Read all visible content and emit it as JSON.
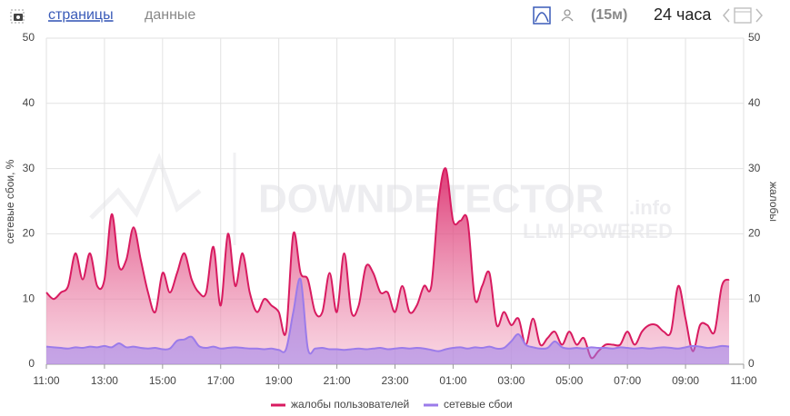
{
  "header": {
    "tabs": [
      "страницы",
      "данные"
    ],
    "interval": "(15м)",
    "range": "24 часа"
  },
  "watermark": {
    "brand": "DOWNDETECTOR",
    "suffix": ".info",
    "tagline": "LLM POWERED"
  },
  "chart_data": {
    "type": "area",
    "x": [
      0,
      0.25,
      0.5,
      0.75,
      1,
      1.25,
      1.5,
      1.75,
      2,
      2.25,
      2.5,
      2.75,
      3,
      3.25,
      3.5,
      3.75,
      4,
      4.25,
      4.5,
      4.75,
      5,
      5.25,
      5.5,
      5.75,
      6,
      6.25,
      6.5,
      6.75,
      7,
      7.25,
      7.5,
      7.75,
      8,
      8.25,
      8.5,
      8.75,
      9,
      9.25,
      9.5,
      9.75,
      10,
      10.25,
      10.5,
      10.75,
      11,
      11.25,
      11.5,
      11.75,
      12,
      12.25,
      12.5,
      12.75,
      13,
      13.25,
      13.5,
      13.75,
      14,
      14.25,
      14.5,
      14.75,
      15,
      15.25,
      15.5,
      15.75,
      16,
      16.25,
      16.5,
      16.75,
      17,
      17.25,
      17.5,
      17.75,
      18,
      18.25,
      18.5,
      18.75,
      19,
      19.25,
      19.5,
      19.75,
      20,
      20.25,
      20.5,
      20.75,
      21,
      21.25,
      21.5,
      21.75,
      22,
      22.25,
      22.5,
      22.75,
      23,
      23.25,
      23.5
    ],
    "xlim": [
      0,
      24
    ],
    "xticks": [
      {
        "value": 0,
        "label": "11:00"
      },
      {
        "value": 2,
        "label": "13:00"
      },
      {
        "value": 4,
        "label": "15:00"
      },
      {
        "value": 6,
        "label": "17:00"
      },
      {
        "value": 8,
        "label": "19:00"
      },
      {
        "value": 10,
        "label": "21:00"
      },
      {
        "value": 12,
        "label": "23:00"
      },
      {
        "value": 14,
        "label": "01:00"
      },
      {
        "value": 16,
        "label": "03:00"
      },
      {
        "value": 18,
        "label": "05:00"
      },
      {
        "value": 20,
        "label": "07:00"
      },
      {
        "value": 22,
        "label": "09:00"
      },
      {
        "value": 24,
        "label": "11:00"
      }
    ],
    "ylim": [
      0,
      50
    ],
    "yticks": [
      0,
      10,
      20,
      30,
      40,
      50
    ],
    "y2lim": [
      0,
      50
    ],
    "y2ticks": [
      0,
      10,
      20,
      30,
      40,
      50
    ],
    "ylabel": "сетевые сбои, %",
    "y2label": "жалобы",
    "grid": true,
    "legend": "bottom",
    "series": [
      {
        "name": "жалобы пользователей",
        "color": "#d81b60",
        "axis": "y2",
        "values": [
          11,
          10,
          11,
          12,
          17,
          13,
          17,
          12,
          13,
          23,
          15,
          16,
          21,
          16,
          11,
          8,
          14,
          11,
          14,
          17,
          13,
          11,
          11,
          18,
          9,
          20,
          12,
          17,
          11,
          8,
          10,
          9,
          8,
          5,
          20,
          14,
          13,
          8,
          8,
          14,
          8,
          17,
          8,
          9,
          15,
          14,
          11,
          11,
          8,
          12,
          8,
          9,
          12,
          12,
          25,
          30,
          22,
          22,
          22,
          10,
          12,
          14,
          6,
          8,
          6,
          7,
          3,
          7,
          3,
          4,
          5,
          3,
          5,
          3,
          4,
          1,
          2,
          3,
          3,
          3,
          5,
          3,
          5,
          6,
          6,
          5,
          5,
          12,
          7,
          2,
          6,
          6,
          5,
          12,
          13
        ]
      },
      {
        "name": "сетевые сбои",
        "color": "#9b7bea",
        "values": [
          2.7,
          2.6,
          2.5,
          2.4,
          2.6,
          2.5,
          2.7,
          2.6,
          2.8,
          2.6,
          3.2,
          2.6,
          2.7,
          2.5,
          2.4,
          2.5,
          2.3,
          2.4,
          3.6,
          3.8,
          4.2,
          2.8,
          2.5,
          2.7,
          2.4,
          2.5,
          2.6,
          2.5,
          2.4,
          2.4,
          2.3,
          2.4,
          2.2,
          2.3,
          8,
          13,
          2.4,
          2.4,
          2.5,
          2.3,
          2.3,
          2.2,
          2.3,
          2.4,
          2.3,
          2.4,
          2.5,
          2.3,
          2.4,
          2.5,
          2.4,
          2.5,
          2.4,
          2.2,
          2,
          2.3,
          2.5,
          2.6,
          2.4,
          2.6,
          2.5,
          2.7,
          2.4,
          2.5,
          3.5,
          4.6,
          3,
          2.6,
          2.4,
          2.5,
          3.5,
          2.6,
          2.4,
          2.5,
          2.4,
          2.6,
          2.5,
          2.5,
          2.4,
          2.6,
          2.5,
          2.4,
          2.5,
          2.4,
          2.5,
          2.6,
          2.5,
          2.4,
          2.6,
          2.8,
          2.7,
          2.5,
          2.6,
          2.8,
          2.7
        ]
      }
    ]
  }
}
